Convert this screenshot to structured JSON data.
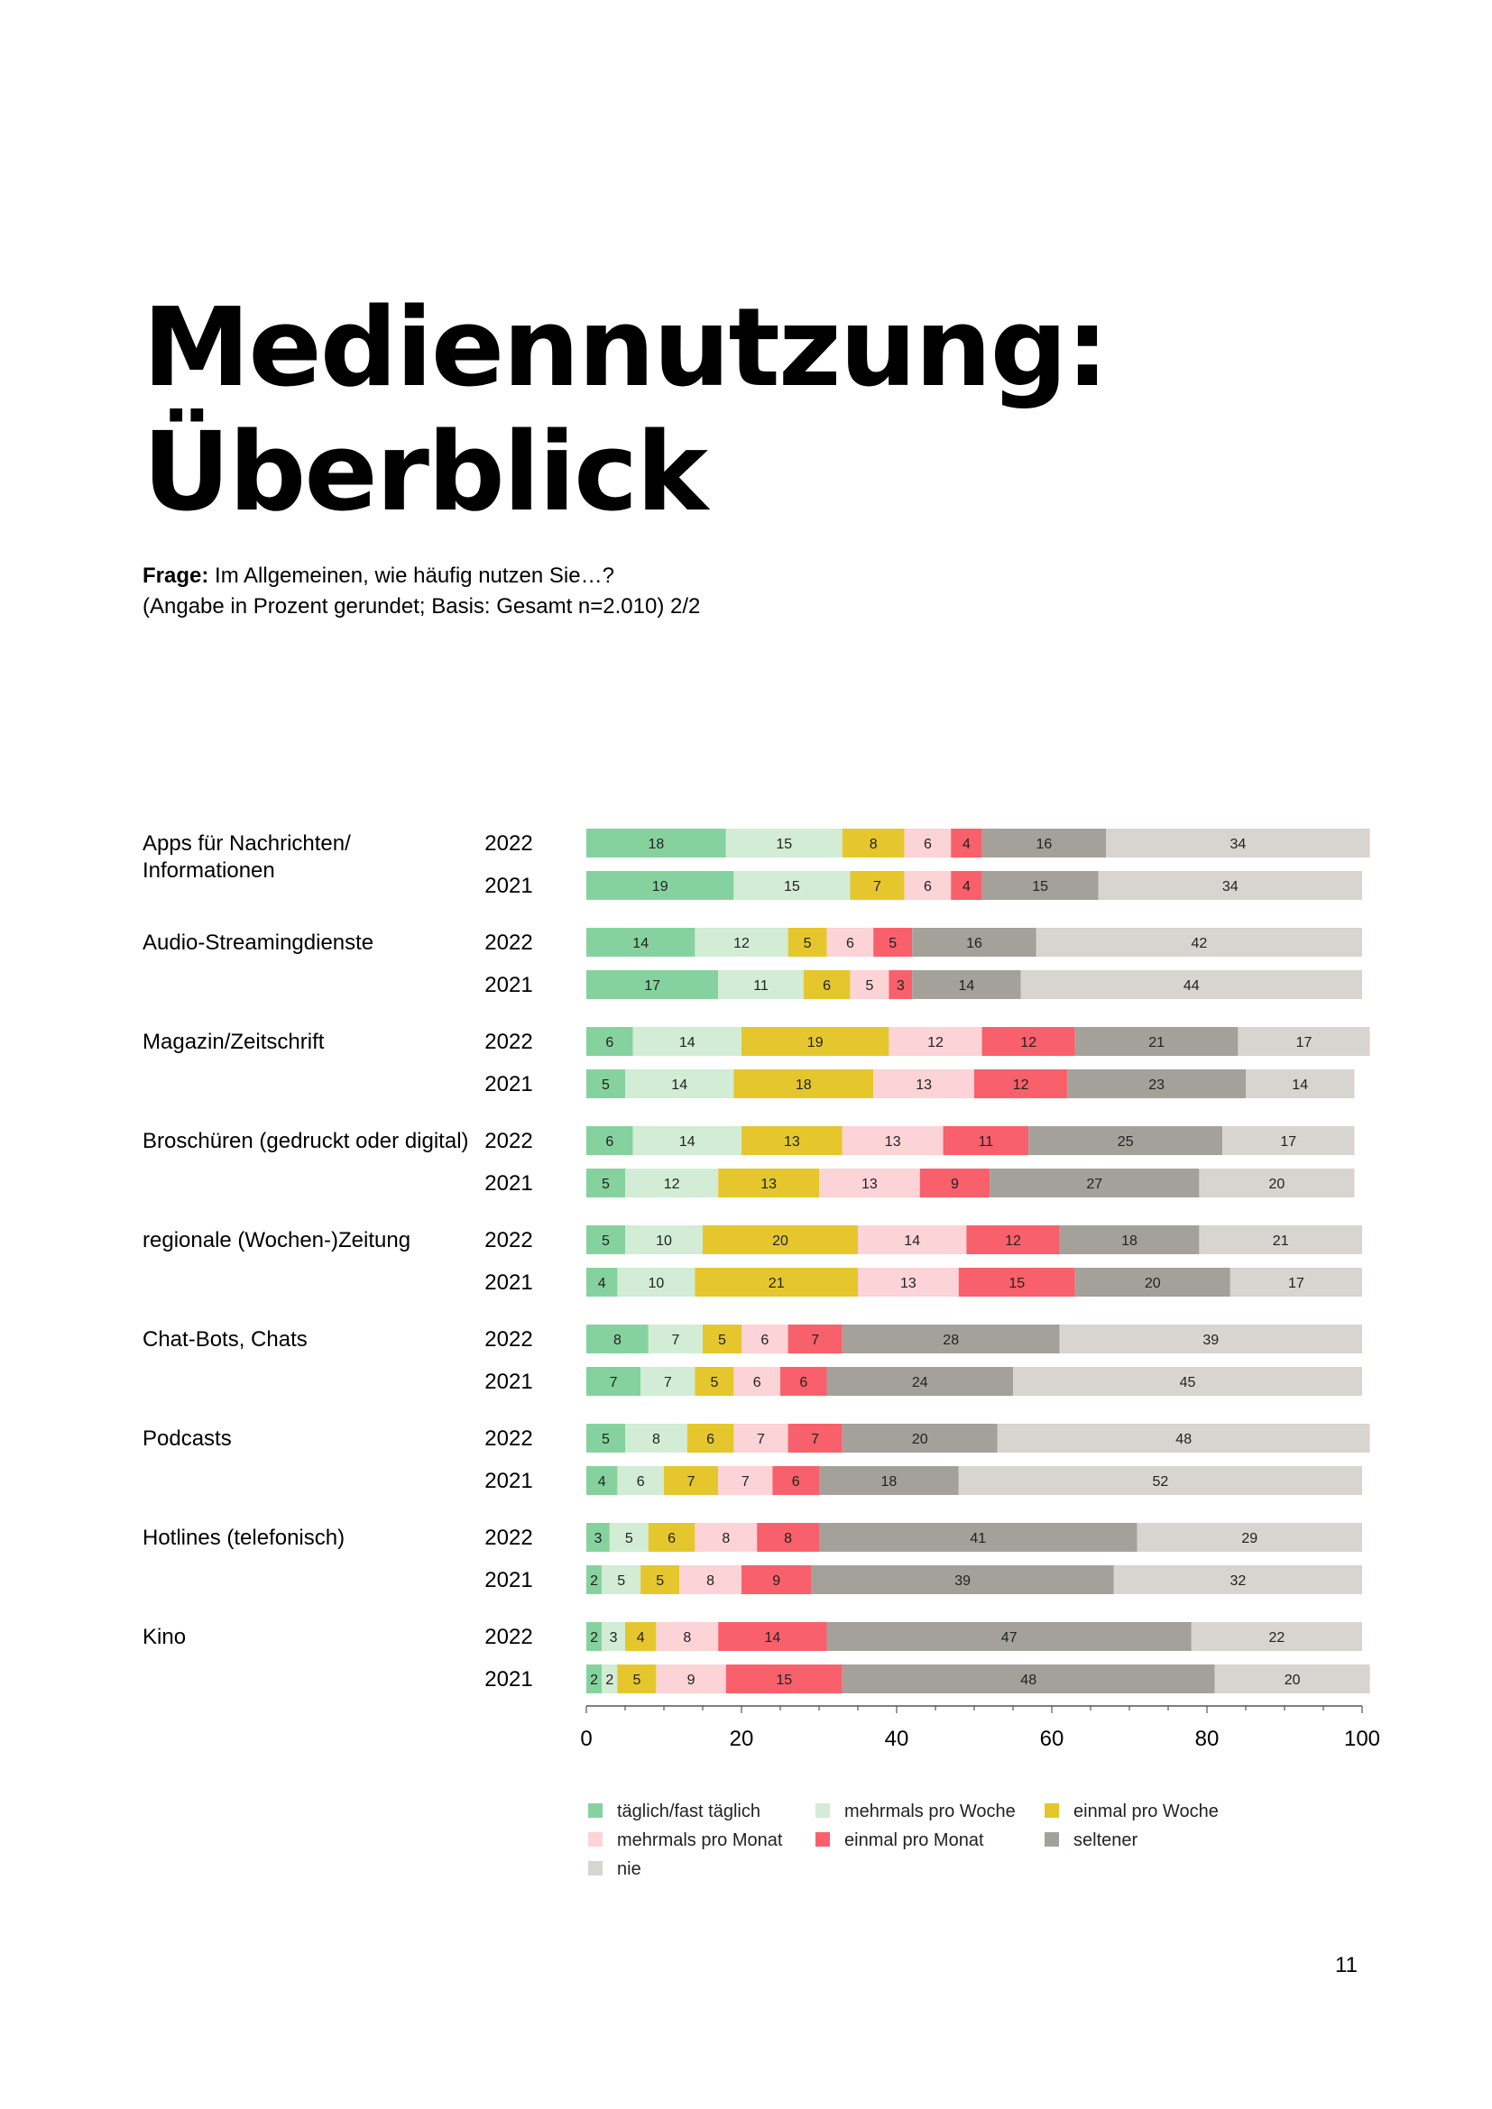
{
  "title": {
    "line1": "Mediennutzung:",
    "line2": "Überblick"
  },
  "question": {
    "label": "Frage:",
    "text": "Im Allgemeinen, wie häufig nutzen Sie…?",
    "note": "(Angabe in Prozent gerundet; Basis: Gesamt n=2.010) 2/2"
  },
  "page_number": "11",
  "colors": {
    "täglich/fast täglich": "#86d29f",
    "mehrmals pro Woche": "#d2ecd5",
    "einmal pro Woche": "#e5c72d",
    "mehrmals pro Monat": "#fcd3d6",
    "einmal pro Monat": "#f8606b",
    "seltener": "#a4a19b",
    "nie": "#d8d4cf"
  },
  "chart_data": {
    "type": "bar",
    "orientation": "horizontal",
    "stacked": true,
    "xlim": [
      0,
      100
    ],
    "xticks": [
      0,
      20,
      40,
      60,
      80,
      100
    ],
    "legend": {
      "placement": "bottom",
      "items": [
        "täglich/fast täglich",
        "mehrmals pro Woche",
        "einmal pro Woche",
        "mehrmals pro Monat",
        "einmal pro Monat",
        "seltener",
        "nie"
      ]
    },
    "groups": [
      {
        "label_lines": [
          "Apps für Nachrichten/",
          "Informationen"
        ],
        "rows": [
          {
            "year": "2022",
            "values": [
              18,
              15,
              8,
              6,
              4,
              16,
              34
            ]
          },
          {
            "year": "2021",
            "values": [
              19,
              15,
              7,
              6,
              4,
              15,
              34
            ]
          }
        ]
      },
      {
        "label_lines": [
          "Audio-Streamingdienste"
        ],
        "rows": [
          {
            "year": "2022",
            "values": [
              14,
              12,
              5,
              6,
              5,
              16,
              42
            ]
          },
          {
            "year": "2021",
            "values": [
              17,
              11,
              6,
              5,
              3,
              14,
              44
            ]
          }
        ]
      },
      {
        "label_lines": [
          "Magazin/Zeitschrift"
        ],
        "rows": [
          {
            "year": "2022",
            "values": [
              6,
              14,
              19,
              12,
              12,
              21,
              17
            ]
          },
          {
            "year": "2021",
            "values": [
              5,
              14,
              18,
              13,
              12,
              23,
              14
            ]
          }
        ]
      },
      {
        "label_lines": [
          "Broschüren (gedruckt oder digital)"
        ],
        "rows": [
          {
            "year": "2022",
            "values": [
              6,
              14,
              13,
              13,
              11,
              25,
              17
            ]
          },
          {
            "year": "2021",
            "values": [
              5,
              12,
              13,
              13,
              9,
              27,
              20
            ]
          }
        ]
      },
      {
        "label_lines": [
          "regionale (Wochen-)Zeitung"
        ],
        "rows": [
          {
            "year": "2022",
            "values": [
              5,
              10,
              20,
              14,
              12,
              18,
              21
            ]
          },
          {
            "year": "2021",
            "values": [
              4,
              10,
              21,
              13,
              15,
              20,
              17
            ]
          }
        ]
      },
      {
        "label_lines": [
          "Chat-Bots, Chats"
        ],
        "rows": [
          {
            "year": "2022",
            "values": [
              8,
              7,
              5,
              6,
              7,
              28,
              39
            ]
          },
          {
            "year": "2021",
            "values": [
              7,
              7,
              5,
              6,
              6,
              24,
              45
            ]
          }
        ]
      },
      {
        "label_lines": [
          "Podcasts"
        ],
        "rows": [
          {
            "year": "2022",
            "values": [
              5,
              8,
              6,
              7,
              7,
              20,
              48
            ]
          },
          {
            "year": "2021",
            "values": [
              4,
              6,
              7,
              7,
              6,
              18,
              52
            ]
          }
        ]
      },
      {
        "label_lines": [
          "Hotlines (telefonisch)"
        ],
        "rows": [
          {
            "year": "2022",
            "values": [
              3,
              5,
              6,
              8,
              8,
              41,
              29
            ]
          },
          {
            "year": "2021",
            "values": [
              2,
              5,
              5,
              8,
              9,
              39,
              32
            ]
          }
        ]
      },
      {
        "label_lines": [
          "Kino"
        ],
        "rows": [
          {
            "year": "2022",
            "values": [
              2,
              3,
              4,
              8,
              14,
              47,
              22
            ]
          },
          {
            "year": "2021",
            "values": [
              2,
              2,
              5,
              9,
              15,
              48,
              20
            ]
          }
        ]
      }
    ]
  }
}
